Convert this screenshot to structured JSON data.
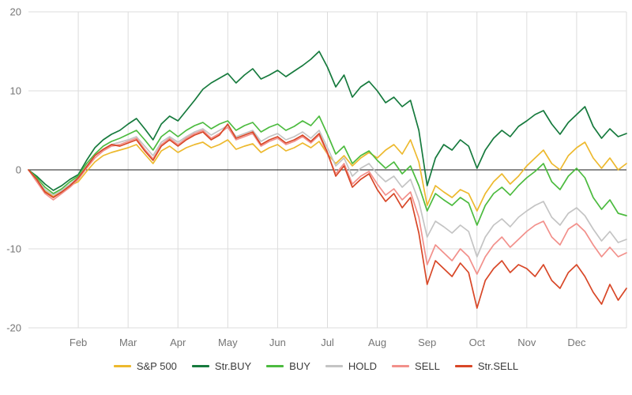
{
  "colors": {
    "background": "#ffffff",
    "grid": "#dcdcdc",
    "zero_line": "#1a1a1a",
    "tick_label": "#757575",
    "legend_label": "#3c3c3c"
  },
  "chart_data": {
    "type": "line",
    "title": "",
    "xlabel": "",
    "ylabel": "",
    "grid": true,
    "legend_position": "bottom",
    "x_range_months": [
      0,
      12
    ],
    "x_tick_labels": [
      "Feb",
      "Mar",
      "Apr",
      "May",
      "Jun",
      "Jul",
      "Aug",
      "Sep",
      "Oct",
      "Nov",
      "Dec"
    ],
    "y_range": [
      -20,
      20
    ],
    "y_ticks": [
      -20,
      -10,
      0,
      10,
      20
    ],
    "series": [
      {
        "name": "S&P 500",
        "color": "#edb92e",
        "values": [
          0,
          -1.2,
          -2.6,
          -3.4,
          -2.8,
          -2.0,
          -1.5,
          -0.2,
          1.0,
          1.8,
          2.2,
          2.5,
          2.8,
          3.2,
          2.0,
          0.8,
          2.4,
          3.0,
          2.2,
          2.8,
          3.2,
          3.5,
          2.8,
          3.2,
          3.8,
          2.6,
          3.0,
          3.3,
          2.2,
          2.8,
          3.2,
          2.4,
          2.8,
          3.4,
          2.8,
          3.6,
          2.0,
          0.8,
          1.8,
          0.5,
          1.5,
          2.2,
          1.5,
          2.5,
          3.2,
          2.0,
          3.8,
          1.0,
          -4.5,
          -2.0,
          -2.8,
          -3.5,
          -2.5,
          -3.0,
          -5.2,
          -3.0,
          -1.5,
          -0.5,
          -1.8,
          -0.8,
          0.5,
          1.5,
          2.5,
          0.8,
          0.0,
          1.8,
          2.8,
          3.5,
          1.5,
          0.2,
          1.5,
          0.0,
          0.8
        ]
      },
      {
        "name": "Str.BUY",
        "color": "#167a3d",
        "values": [
          0,
          -0.8,
          -1.8,
          -2.6,
          -2.0,
          -1.2,
          -0.6,
          1.2,
          2.8,
          3.8,
          4.5,
          5.0,
          5.8,
          6.5,
          5.2,
          3.8,
          5.8,
          6.8,
          6.2,
          7.5,
          8.8,
          10.2,
          11.0,
          11.6,
          12.2,
          11.0,
          12.0,
          12.8,
          11.5,
          12.0,
          12.6,
          11.8,
          12.5,
          13.2,
          14.0,
          15.0,
          13.0,
          10.5,
          12.0,
          9.2,
          10.5,
          11.2,
          10.0,
          8.5,
          9.2,
          8.0,
          8.8,
          5.0,
          -2.0,
          1.5,
          3.2,
          2.5,
          3.8,
          3.0,
          0.2,
          2.5,
          4.0,
          5.0,
          4.2,
          5.5,
          6.2,
          7.0,
          7.5,
          5.8,
          4.5,
          6.0,
          7.0,
          8.0,
          5.5,
          4.0,
          5.2,
          4.2,
          4.6
        ]
      },
      {
        "name": "BUY",
        "color": "#4cbb3f",
        "values": [
          0,
          -1.0,
          -2.2,
          -3.0,
          -2.4,
          -1.5,
          -0.8,
          0.8,
          2.0,
          3.0,
          3.6,
          4.0,
          4.5,
          5.0,
          3.8,
          2.5,
          4.2,
          5.0,
          4.2,
          5.0,
          5.6,
          6.0,
          5.2,
          5.8,
          6.2,
          5.0,
          5.6,
          6.0,
          4.8,
          5.4,
          5.8,
          5.0,
          5.5,
          6.2,
          5.6,
          6.8,
          4.5,
          2.0,
          3.0,
          0.8,
          1.8,
          2.4,
          1.2,
          0.2,
          1.0,
          -0.5,
          0.5,
          -2.0,
          -5.2,
          -3.0,
          -3.8,
          -4.5,
          -3.5,
          -4.2,
          -7.0,
          -4.5,
          -3.0,
          -2.2,
          -3.2,
          -2.0,
          -1.0,
          -0.2,
          0.8,
          -1.5,
          -2.5,
          -0.8,
          0.2,
          -1.0,
          -3.5,
          -5.0,
          -3.8,
          -5.5,
          -5.8
        ]
      },
      {
        "name": "HOLD",
        "color": "#c4c4c4",
        "values": [
          0,
          -1.2,
          -2.5,
          -3.2,
          -2.6,
          -1.8,
          -1.0,
          0.5,
          1.8,
          2.6,
          3.2,
          3.5,
          3.8,
          4.2,
          3.0,
          1.8,
          3.5,
          4.2,
          3.5,
          4.2,
          4.8,
          5.2,
          4.4,
          5.0,
          5.6,
          4.2,
          4.6,
          5.0,
          3.6,
          4.2,
          4.6,
          3.8,
          4.2,
          4.8,
          4.0,
          5.0,
          2.8,
          0.5,
          1.5,
          -0.8,
          0.2,
          0.8,
          -0.5,
          -1.5,
          -0.8,
          -2.2,
          -1.2,
          -4.0,
          -8.5,
          -6.5,
          -7.2,
          -8.0,
          -7.0,
          -7.8,
          -11.0,
          -8.5,
          -7.0,
          -6.2,
          -7.2,
          -6.0,
          -5.2,
          -4.5,
          -4.0,
          -6.0,
          -7.0,
          -5.5,
          -4.8,
          -5.8,
          -7.5,
          -9.0,
          -7.8,
          -9.2,
          -8.8
        ]
      },
      {
        "name": "SELL",
        "color": "#f2908b",
        "values": [
          0,
          -1.5,
          -3.0,
          -3.8,
          -3.0,
          -2.2,
          -1.2,
          0.2,
          1.5,
          2.4,
          3.0,
          3.2,
          3.6,
          4.0,
          2.6,
          1.4,
          3.2,
          4.0,
          3.2,
          4.0,
          4.6,
          5.0,
          4.0,
          4.6,
          5.4,
          3.8,
          4.2,
          4.6,
          3.0,
          3.6,
          4.0,
          3.2,
          3.6,
          4.2,
          3.4,
          4.4,
          2.0,
          -0.5,
          0.8,
          -1.8,
          -0.8,
          -0.2,
          -1.8,
          -3.2,
          -2.4,
          -3.8,
          -2.8,
          -6.0,
          -12.0,
          -9.5,
          -10.5,
          -11.5,
          -10.0,
          -11.0,
          -13.2,
          -11.0,
          -9.5,
          -8.5,
          -9.8,
          -8.8,
          -7.8,
          -7.0,
          -6.5,
          -8.5,
          -9.5,
          -7.5,
          -6.8,
          -7.8,
          -9.5,
          -11.0,
          -9.8,
          -11.0,
          -10.5
        ]
      },
      {
        "name": "Str.SELL",
        "color": "#d84727",
        "values": [
          0,
          -1.2,
          -2.8,
          -3.5,
          -2.8,
          -2.0,
          -1.0,
          0.4,
          1.8,
          2.6,
          3.2,
          3.0,
          3.4,
          3.8,
          2.4,
          1.2,
          3.0,
          3.8,
          3.0,
          3.8,
          4.4,
          4.8,
          3.8,
          4.4,
          5.8,
          4.0,
          4.4,
          4.8,
          3.2,
          3.8,
          4.2,
          3.4,
          3.8,
          4.4,
          3.6,
          4.6,
          2.2,
          -0.8,
          0.5,
          -2.2,
          -1.2,
          -0.5,
          -2.5,
          -4.0,
          -3.0,
          -4.8,
          -3.5,
          -8.0,
          -14.5,
          -11.5,
          -12.5,
          -13.5,
          -11.8,
          -13.0,
          -17.5,
          -14.0,
          -12.5,
          -11.5,
          -13.0,
          -12.0,
          -12.5,
          -13.5,
          -12.0,
          -14.0,
          -15.0,
          -13.0,
          -12.0,
          -13.5,
          -15.5,
          -17.0,
          -14.5,
          -16.5,
          -15.0
        ]
      }
    ]
  }
}
